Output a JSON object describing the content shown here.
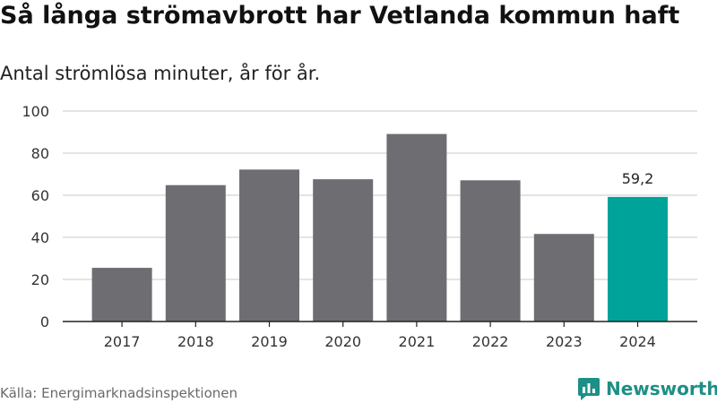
{
  "header": {
    "title": "Så långa strömavbrott har Vetlanda kommun haft",
    "subtitle": "Antal strömlösa minuter, år för år."
  },
  "footer": {
    "source": "Källa: Energimarknadsinspektionen",
    "brand": "Newsworthy",
    "brand_icon": "bar-chart-bubble-icon"
  },
  "colors": {
    "bar": "#6e6d72",
    "highlight": "#00a399",
    "grid": "#dcdcdc",
    "axis": "#222222",
    "brand": "#1d8f86"
  },
  "chart_data": {
    "type": "bar",
    "title": "Så långa strömavbrott har Vetlanda kommun haft",
    "subtitle": "Antal strömlösa minuter, år för år.",
    "xlabel": "",
    "ylabel": "",
    "categories": [
      "2017",
      "2018",
      "2019",
      "2020",
      "2021",
      "2022",
      "2023",
      "2024"
    ],
    "values": [
      25.5,
      64.8,
      72.2,
      67.6,
      89.1,
      67.1,
      41.6,
      59.2
    ],
    "highlight_index": 7,
    "data_labels": [
      {
        "index": 7,
        "text": "59,2"
      }
    ],
    "ylim": [
      0,
      100
    ],
    "yticks": [
      0,
      20,
      40,
      60,
      80,
      100
    ],
    "grid": true,
    "legend": "none"
  }
}
